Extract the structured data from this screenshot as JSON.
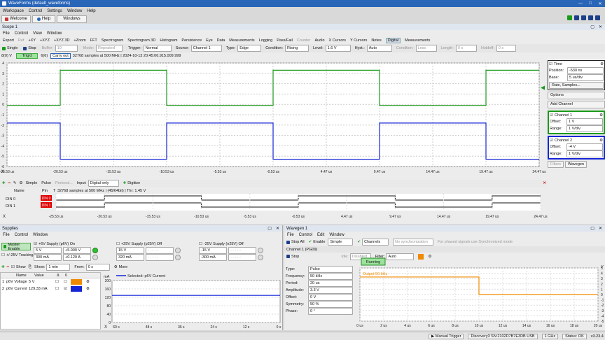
{
  "app": {
    "title": "WaveForms (default_waveforms)",
    "menu": [
      "Workspace",
      "Control",
      "Settings",
      "Window",
      "Help"
    ],
    "tabs": [
      "Welcome",
      "Help",
      "Windows"
    ]
  },
  "scope": {
    "title": "Scope 1",
    "menu": [
      "File",
      "Control",
      "View",
      "Window"
    ],
    "toolbar": [
      "Export",
      "Ref",
      "+XY",
      "+XYZ",
      "+XYZ 3D",
      "+Zoom",
      "FFT",
      "Spectrogram",
      "Spectrogram 3D",
      "Histogram",
      "Persistence",
      "Eye",
      "Data",
      "Measurements",
      "Logging",
      "Pass/Fail",
      "Counter",
      "Audio",
      "X Cursors",
      "Y Cursors",
      "Notes",
      "Digital",
      "Measurements"
    ],
    "trig": {
      "single": "Single",
      "stop": "Stop",
      "buffer": "Buffer:",
      "buffer_val": "10",
      "mode_label": "Mode:",
      "mode_val": "Repeated",
      "trigger_label": "Trigger:",
      "trigger_val": "Normal",
      "source_label": "Source:",
      "source_val": "Channel 1",
      "type_label": "Type:",
      "type_val": "Edge",
      "condition_label": "Condition:",
      "condition_val": "Rising",
      "level_label": "Level:",
      "level_val": "1.6 V",
      "hyst_label": "Hyst.:",
      "hyst_val": "Auto",
      "cond2_label": "Condition:",
      "cond2_val": "Less",
      "length_label": "Length:",
      "length_val": "0 s",
      "holdoff_label": "Holdoff:",
      "holdoff_val": "0 s"
    },
    "status": {
      "ch": "8(0) V",
      "trig": "Trig'd",
      "count": "6(6)",
      "state": "Carry out",
      "info": "32768 samples at 500 MHz | 2024-10-13 20:45:06.915.009.999"
    },
    "y_ticks": [
      "4",
      "3",
      "2",
      "1",
      "0",
      "-1",
      "-2",
      "-3",
      "-4",
      "-5",
      "-6"
    ],
    "x_ticks": [
      "-25.53 us",
      "-20.53 us",
      "-15.53 us",
      "-10.53 us",
      "-5.53 us",
      "-0.53 us",
      "4.47 us",
      "9.47 us",
      "14.47 us",
      "19.47 us",
      "24.47 us"
    ],
    "side": {
      "time_title": "Time",
      "position_label": "Position:",
      "position_val": "-530 ns",
      "base_label": "Base:",
      "base_val": "5 us/div",
      "rate": "Rate, Samples...",
      "options": "Options",
      "add_channel": "Add Channel",
      "ch1": {
        "title": "Channel 1",
        "offset_label": "Offset:",
        "offset_val": "1 V",
        "range_label": "Range:",
        "range_val": "1 V/div"
      },
      "ch2": {
        "title": "Channel 2",
        "offset_label": "Offset:",
        "offset_val": "-4 V",
        "range_label": "Range:",
        "range_val": "1 V/div"
      },
      "filters": "Filters",
      "wavegen": "Wavegen"
    },
    "digital": {
      "simple": "Simple",
      "pulse": "Pulse",
      "protocol": "Protocol...",
      "input_label": "Input:",
      "input_val": "Digital only",
      "digitize": "Digitize",
      "col_name": "Name",
      "col_pin": "Pin",
      "col_t": "T",
      "info": "32768 samples at 500 MHz | (45/64bit) | Thr: 1.45 V",
      "rows": [
        {
          "name": "DIN 0",
          "pin": "DIN 0"
        },
        {
          "name": "DIN 1",
          "pin": "DIN 1"
        }
      ],
      "x_ticks": [
        "-25.53 us",
        "-20.53 us",
        "-15.53 us",
        "-10.53 us",
        "-5.53 us",
        "-0.53 us",
        "4.47 us",
        "9.47 us",
        "14.47 us",
        "19.47 us",
        "24.47 us"
      ]
    }
  },
  "supplies": {
    "title": "Supplies",
    "menu": [
      "File",
      "Control",
      "Window"
    ],
    "master": "Master Enable",
    "p6": {
      "label": "+6V Supply (p6V) On",
      "v": "5 V",
      "vread": "+5.000 V",
      "i": "300 mA",
      "iread": "+0.129 A"
    },
    "p25": {
      "label": "+25V Supply (p25V) Off",
      "v": "15 V",
      "vread": "- . - - -",
      "i": "320 mA",
      "iread": "- . - - -"
    },
    "n25": {
      "label": "-25V Supply (n25V) Off",
      "v": "-15 V",
      "vread": "- . - - -",
      "i": "-300 mA",
      "iread": "- . - - -"
    },
    "tracking": "+/-25V Tracking",
    "tool": {
      "show": "Show",
      "show_label": "Show:",
      "show_val": "1 min",
      "from_label": "From:",
      "from_val": "0 s",
      "more": "More"
    },
    "table": {
      "headers": [
        "Name",
        "Value",
        "Δ",
        "0"
      ],
      "rows": [
        {
          "n": "1",
          "name": "p6V Voltage",
          "value": "5 V"
        },
        {
          "n": "2",
          "name": "p6V Current",
          "value": "129.33 mA"
        }
      ]
    },
    "plot": {
      "unit": "mA",
      "legend": "Selected: p6V Current",
      "y_ticks": [
        "200",
        "160",
        "120",
        "80",
        "40",
        "0"
      ],
      "x_ticks": [
        "60 s",
        "48 s",
        "36 s",
        "24 s",
        "12 s",
        "0 s"
      ]
    }
  },
  "wavegen": {
    "title": "Wavegen 1",
    "menu": [
      "File",
      "Control",
      "Edit",
      "Window"
    ],
    "stop_all": "Stop All",
    "enable": "Enable",
    "mode": "Simple",
    "channels": "Channels",
    "sync": "No synchronization",
    "note": "For phased signals use Synchronized mode",
    "ch_title": "Channel 1 (PG09)",
    "stop": "Stop",
    "idle_label": "Idle:",
    "idle_val": "Disabled",
    "filter_label": "Filter:",
    "filter_val": "Auto",
    "fields": [
      {
        "l": "Type:",
        "v": "Pulse"
      },
      {
        "l": "Frequency:",
        "v": "50 kHz"
      },
      {
        "l": "Period:",
        "v": "20 us"
      },
      {
        "l": "Amplitude:",
        "v": "3.3 V"
      },
      {
        "l": "Offset:",
        "v": "0 V"
      },
      {
        "l": "Symmetry:",
        "v": "50 %"
      },
      {
        "l": "Phase:",
        "v": "0 °"
      }
    ],
    "running": "Running",
    "output": "Output 50 kHz",
    "unit": "V",
    "y_ticks": [
      "5",
      "4",
      "3",
      "2",
      "1",
      "0",
      "-1",
      "-2",
      "-3",
      "-4",
      "-5"
    ],
    "x_ticks": [
      "0 us",
      "2 us",
      "4 us",
      "6 us",
      "8 us",
      "10 us",
      "12 us",
      "14 us",
      "16 us",
      "18 us",
      "20 us"
    ]
  },
  "status": {
    "manual": "Manual Trigger",
    "device": "Discovery3 SN:2102D7B7E3DB USB",
    "clock": "1 GHz",
    "ok": "Status: OK",
    "ver": "v3.23.4"
  },
  "colors": {
    "title": "#2a66b8",
    "ch1": "#1a9a1a",
    "ch2": "#1525d6",
    "wave": "#f08a00"
  }
}
